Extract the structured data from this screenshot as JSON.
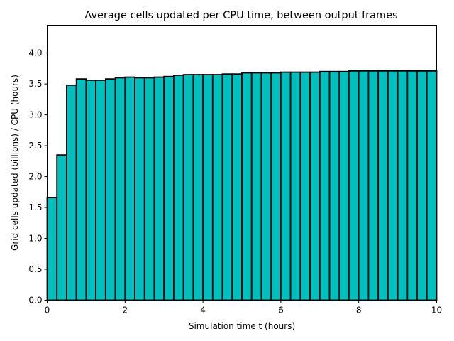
{
  "chart_data": {
    "type": "bar",
    "title": "Average cells updated per CPU time, between output frames",
    "xlabel": "Simulation time t (hours)",
    "ylabel": "Grid cells updated (billions) / CPU (hours)",
    "xlim": [
      0,
      10
    ],
    "ylim": [
      0,
      4.45
    ],
    "xticks": [
      0,
      2,
      4,
      6,
      8,
      10
    ],
    "xtick_labels": [
      "0",
      "2",
      "4",
      "6",
      "8",
      "10"
    ],
    "yticks": [
      0,
      0.5,
      1.0,
      1.5,
      2.0,
      2.5,
      3.0,
      3.5,
      4.0
    ],
    "ytick_labels": [
      "0.0",
      "0.5",
      "1.0",
      "1.5",
      "2.0",
      "2.5",
      "3.0",
      "3.5",
      "4.0"
    ],
    "grid": false,
    "bar_color": "#00bfbf",
    "edge_color": "#000000",
    "bin_width": 0.25,
    "x": [
      0,
      0.25,
      0.5,
      0.75,
      1.0,
      1.25,
      1.5,
      1.75,
      2.0,
      2.25,
      2.5,
      2.75,
      3.0,
      3.25,
      3.5,
      3.75,
      4.0,
      4.25,
      4.5,
      4.75,
      5.0,
      5.25,
      5.5,
      5.75,
      6.0,
      6.25,
      6.5,
      6.75,
      7.0,
      7.25,
      7.5,
      7.75,
      8.0,
      8.25,
      8.5,
      8.75,
      9.0,
      9.25,
      9.5,
      9.75
    ],
    "values": [
      1.66,
      2.35,
      3.48,
      3.58,
      3.56,
      3.56,
      3.58,
      3.6,
      3.61,
      3.6,
      3.6,
      3.61,
      3.62,
      3.64,
      3.65,
      3.65,
      3.65,
      3.65,
      3.66,
      3.66,
      3.68,
      3.68,
      3.68,
      3.68,
      3.69,
      3.69,
      3.69,
      3.69,
      3.7,
      3.7,
      3.7,
      3.71,
      3.71,
      3.71,
      3.71,
      3.71,
      3.71,
      3.71,
      3.71,
      3.71
    ]
  }
}
